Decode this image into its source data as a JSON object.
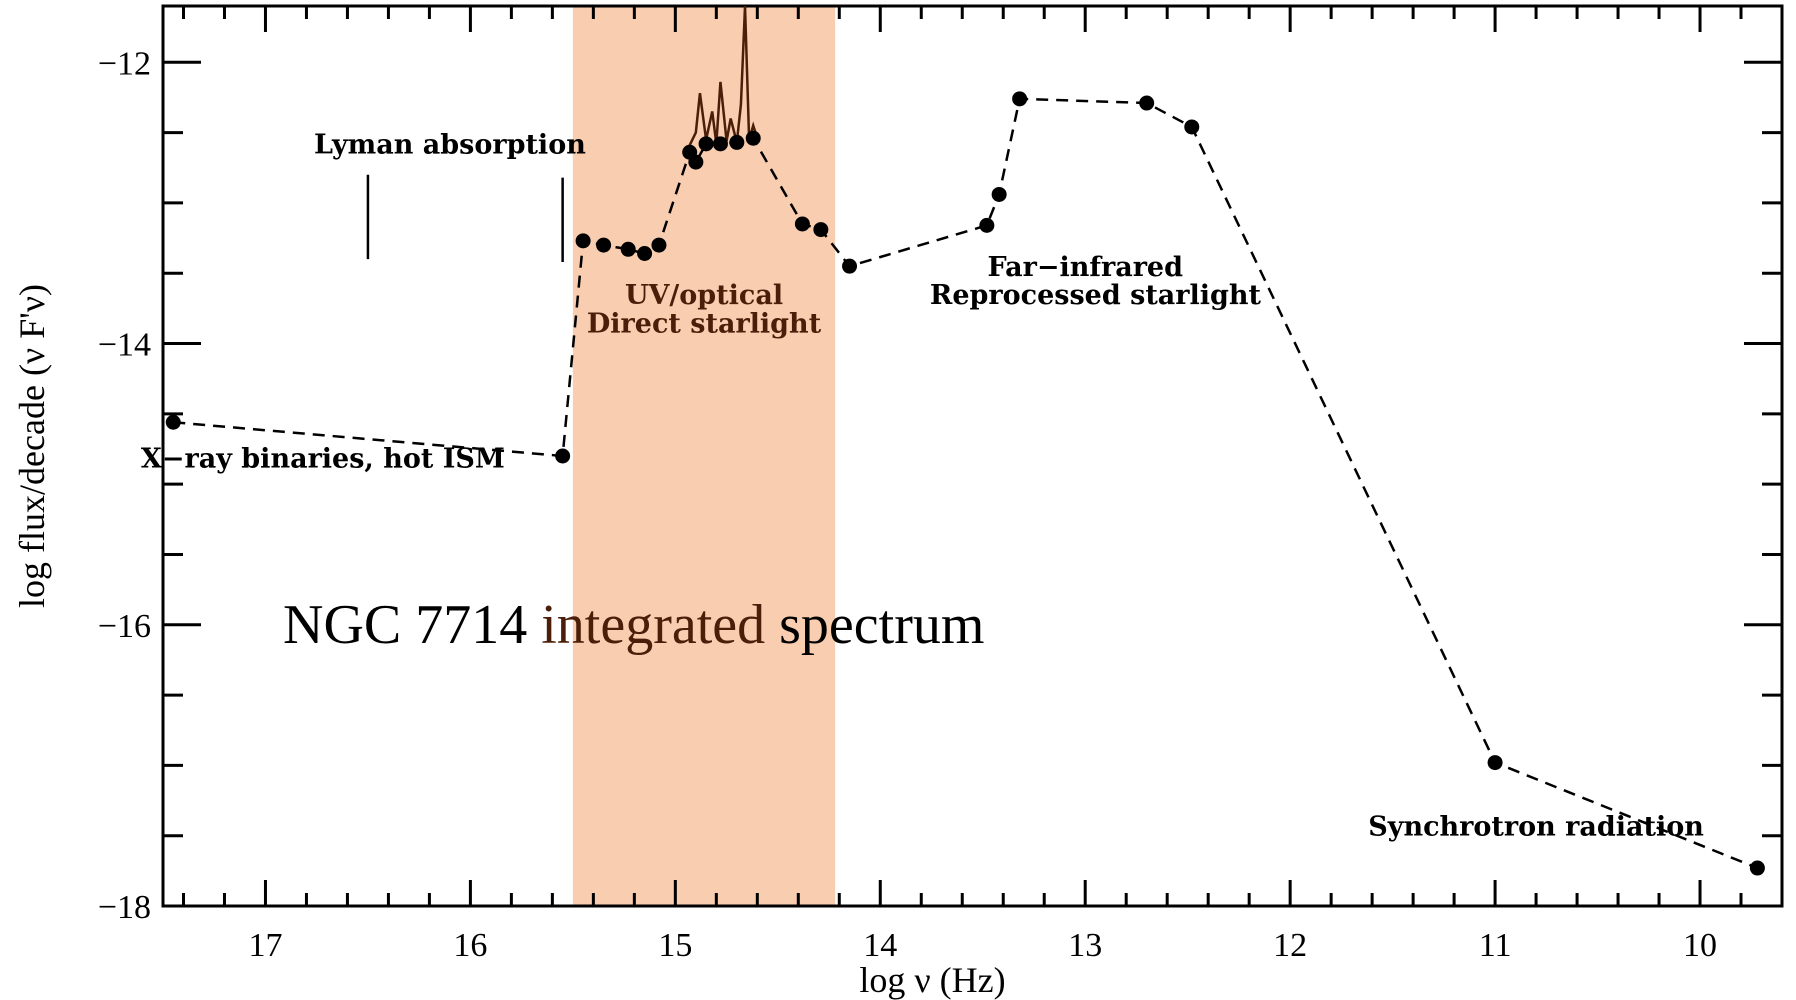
{
  "chart_data": {
    "type": "line",
    "title": "NGC 7714 integrated spectrum",
    "xlabel": "log ν (Hz)",
    "ylabel": "log flux/decade (ν F'ν)",
    "xlim": [
      17.5,
      9.6
    ],
    "ylim": [
      -18,
      -11.6
    ],
    "x_reversed": true,
    "x_ticks": [
      17,
      16,
      15,
      14,
      13,
      12,
      11,
      10
    ],
    "x_tick_labels": [
      "17",
      "16",
      "15",
      "14",
      "13",
      "12",
      "11",
      "10"
    ],
    "y_ticks": [
      -12,
      -14,
      -16,
      -18
    ],
    "y_tick_labels": [
      "−12",
      "−14",
      "−16",
      "−18"
    ],
    "grid": false,
    "highlight_band": {
      "x_range": [
        15.5,
        14.22
      ],
      "color": "#f9cdb0"
    },
    "series": [
      {
        "style": "dashed line with filled circle markers",
        "color": "#000000",
        "points": [
          {
            "x": 17.45,
            "y": -14.56
          },
          {
            "x": 15.55,
            "y": -14.8
          },
          {
            "x": 15.45,
            "y": -13.27
          },
          {
            "x": 15.35,
            "y": -13.3
          },
          {
            "x": 15.23,
            "y": -13.33
          },
          {
            "x": 15.15,
            "y": -13.36
          },
          {
            "x": 15.08,
            "y": -13.3
          },
          {
            "x": 14.93,
            "y": -12.64
          },
          {
            "x": 14.9,
            "y": -12.71
          },
          {
            "x": 14.85,
            "y": -12.58
          },
          {
            "x": 14.78,
            "y": -12.58
          },
          {
            "x": 14.7,
            "y": -12.57
          },
          {
            "x": 14.62,
            "y": -12.54
          },
          {
            "x": 14.38,
            "y": -13.15
          },
          {
            "x": 14.29,
            "y": -13.19
          },
          {
            "x": 14.15,
            "y": -13.45
          },
          {
            "x": 13.48,
            "y": -13.16
          },
          {
            "x": 13.42,
            "y": -12.94
          },
          {
            "x": 13.32,
            "y": -12.26
          },
          {
            "x": 12.7,
            "y": -12.29
          },
          {
            "x": 12.48,
            "y": -12.46
          },
          {
            "x": 11.0,
            "y": -16.98
          },
          {
            "x": 9.72,
            "y": -17.73
          }
        ]
      },
      {
        "style": "solid spectrum line",
        "color": "#4a1e08",
        "points": [
          {
            "x": 14.95,
            "y": -12.65
          },
          {
            "x": 14.9,
            "y": -12.5
          },
          {
            "x": 14.88,
            "y": -12.22
          },
          {
            "x": 14.85,
            "y": -12.55
          },
          {
            "x": 14.82,
            "y": -12.35
          },
          {
            "x": 14.8,
            "y": -12.58
          },
          {
            "x": 14.78,
            "y": -12.14
          },
          {
            "x": 14.75,
            "y": -12.56
          },
          {
            "x": 14.73,
            "y": -12.4
          },
          {
            "x": 14.7,
            "y": -12.57
          },
          {
            "x": 14.68,
            "y": -12.3
          },
          {
            "x": 14.66,
            "y": -11.6
          },
          {
            "x": 14.64,
            "y": -12.55
          },
          {
            "x": 14.62,
            "y": -12.45
          },
          {
            "x": 14.6,
            "y": -12.54
          }
        ]
      }
    ],
    "annotations": [
      {
        "text": "Lyman absorption",
        "x": 16.1,
        "y": -12.65
      },
      {
        "text": "UV/optical",
        "x": 14.86,
        "y": -13.72
      },
      {
        "text": "Direct starlight",
        "x": 14.86,
        "y": -13.92
      },
      {
        "text": "Far−infrared",
        "x": 13.0,
        "y": -13.52
      },
      {
        "text": "Reprocessed starlight",
        "x": 12.95,
        "y": -13.72
      },
      {
        "text": "X−ray binaries, hot ISM",
        "x": 16.72,
        "y": -14.88
      },
      {
        "text": "Synchrotron radiation",
        "x": 10.8,
        "y": -17.5
      }
    ],
    "lyman_markers": [
      16.5,
      15.55
    ]
  }
}
